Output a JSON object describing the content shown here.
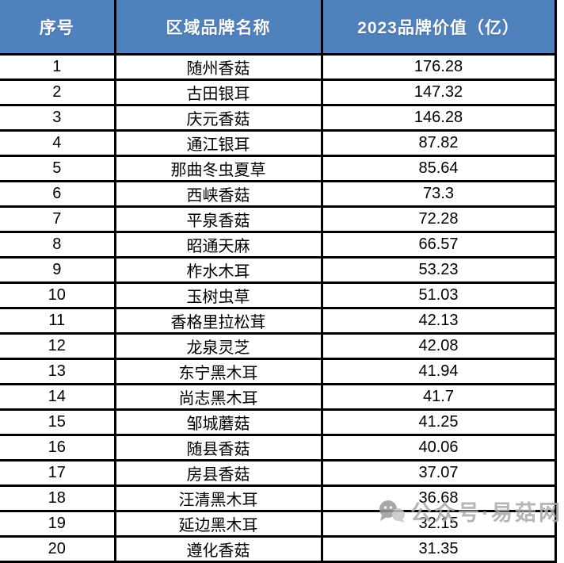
{
  "chart_data": {
    "type": "table",
    "title": "",
    "columns": [
      "序号",
      "区域品牌名称",
      "2023品牌价值（亿）"
    ],
    "rows": [
      [
        1,
        "随州香菇",
        176.28
      ],
      [
        2,
        "古田银耳",
        147.32
      ],
      [
        3,
        "庆元香菇",
        146.28
      ],
      [
        4,
        "通江银耳",
        87.82
      ],
      [
        5,
        "那曲冬虫夏草",
        85.64
      ],
      [
        6,
        "西峡香菇",
        73.3
      ],
      [
        7,
        "平泉香菇",
        72.28
      ],
      [
        8,
        "昭通天麻",
        66.57
      ],
      [
        9,
        "柞水木耳",
        53.23
      ],
      [
        10,
        "玉树虫草",
        51.03
      ],
      [
        11,
        "香格里拉松茸",
        42.13
      ],
      [
        12,
        "龙泉灵芝",
        42.08
      ],
      [
        13,
        "东宁黑木耳",
        41.94
      ],
      [
        14,
        "尚志黑木耳",
        41.7
      ],
      [
        15,
        "邹城蘑菇",
        41.25
      ],
      [
        16,
        "随县香菇",
        40.06
      ],
      [
        17,
        "房县香菇",
        37.07
      ],
      [
        18,
        "汪清黑木耳",
        36.68
      ],
      [
        19,
        "延边黑木耳",
        32.15
      ],
      [
        20,
        "遵化香菇",
        31.35
      ]
    ],
    "layout": {
      "header_bg": "#4F81BD",
      "header_text_color": "#FFFFFF",
      "grid": true,
      "border_color": "#000000"
    }
  },
  "watermark": {
    "text": "公众号·易菇网",
    "icon": "wechat-official-account-icon",
    "color": "#A8A8A8"
  },
  "colors": {
    "header_bg": "#4F81BD",
    "header_text": "#FFFFFF",
    "border": "#000000",
    "cell_bg": "#FFFFFF",
    "cell_text": "#000000"
  }
}
